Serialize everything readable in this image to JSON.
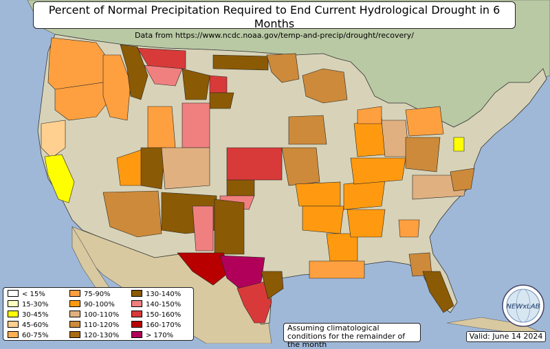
{
  "title": "Percent of Normal Precipitation Required to End Current Hydrological Drought in 6 Months",
  "subtitle": "Data from https://www.ncdc.noaa.gov/temp-and-precip/drought/recovery/",
  "legend": [
    {
      "label": "< 15%",
      "color": "#ffffff"
    },
    {
      "label": "15-30%",
      "color": "#ffffc0"
    },
    {
      "label": "30-45%",
      "color": "#ffff00"
    },
    {
      "label": "45-60%",
      "color": "#ffd090"
    },
    {
      "label": "60-75%",
      "color": "#ffb050"
    },
    {
      "label": "75-90%",
      "color": "#ffa040"
    },
    {
      "label": "90-100%",
      "color": "#ff9a10"
    },
    {
      "label": "100-110%",
      "color": "#e0b080"
    },
    {
      "label": "110-120%",
      "color": "#cd8a3a"
    },
    {
      "label": "120-130%",
      "color": "#a86a12"
    },
    {
      "label": "130-140%",
      "color": "#8b5a05"
    },
    {
      "label": "140-150%",
      "color": "#f08080"
    },
    {
      "label": "150-160%",
      "color": "#d83a3a"
    },
    {
      "label": "160-170%",
      "color": "#b80000"
    },
    {
      "label": "> 170%",
      "color": "#b0005a"
    }
  ],
  "note": "Assuming climatological conditions for the remainder of the month",
  "valid": "Valid: June 14 2024",
  "logo_text": "NEWxLAB",
  "colors": {
    "ocean": "#9fb8d8",
    "land": "#d8d3b8",
    "canada": "#b9c9a4",
    "mexico": "#d9c9a0"
  }
}
